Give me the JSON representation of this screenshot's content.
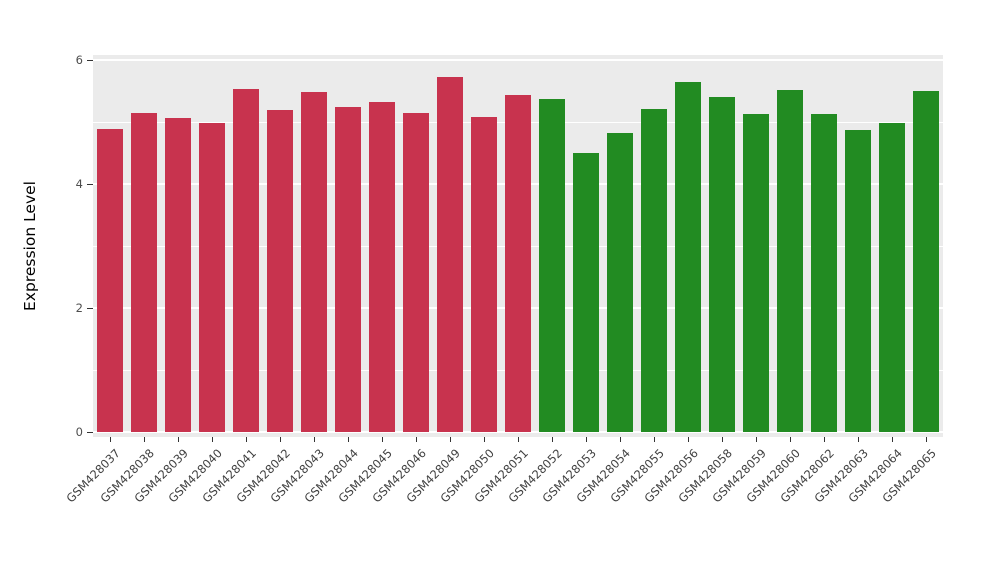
{
  "chart_data": {
    "type": "bar",
    "title": "",
    "xlabel": "",
    "ylabel": "Expression Level",
    "ylim": [
      0,
      6
    ],
    "yticks": [
      0,
      2,
      4,
      6
    ],
    "yticks_minor": [
      1,
      3,
      5
    ],
    "grid": "on",
    "legend": "none",
    "panel_background": "#EBEBEB",
    "grid_color": "#FFFFFF",
    "tick_label_color": "#404040",
    "categories": [
      "GSM428037",
      "GSM428038",
      "GSM428039",
      "GSM428040",
      "GSM428041",
      "GSM428042",
      "GSM428043",
      "GSM428044",
      "GSM428045",
      "GSM428046",
      "GSM428049",
      "GSM428050",
      "GSM428051",
      "GSM428052",
      "GSM428053",
      "GSM428054",
      "GSM428055",
      "GSM428056",
      "GSM428058",
      "GSM428059",
      "GSM428060",
      "GSM428062",
      "GSM428063",
      "GSM428064",
      "GSM428065"
    ],
    "values": [
      4.88,
      5.15,
      5.07,
      4.98,
      5.53,
      5.2,
      5.48,
      5.24,
      5.32,
      5.14,
      5.73,
      5.08,
      5.44,
      5.37,
      4.5,
      4.83,
      5.21,
      5.65,
      5.4,
      5.13,
      5.51,
      5.13,
      4.87,
      4.99,
      5.5
    ],
    "colors": [
      "#C8334E",
      "#C8334E",
      "#C8334E",
      "#C8334E",
      "#C8334E",
      "#C8334E",
      "#C8334E",
      "#C8334E",
      "#C8334E",
      "#C8334E",
      "#C8334E",
      "#C8334E",
      "#C8334E",
      "#228B22",
      "#228B22",
      "#228B22",
      "#228B22",
      "#228B22",
      "#228B22",
      "#228B22",
      "#228B22",
      "#228B22",
      "#228B22",
      "#228B22",
      "#228B22"
    ]
  }
}
